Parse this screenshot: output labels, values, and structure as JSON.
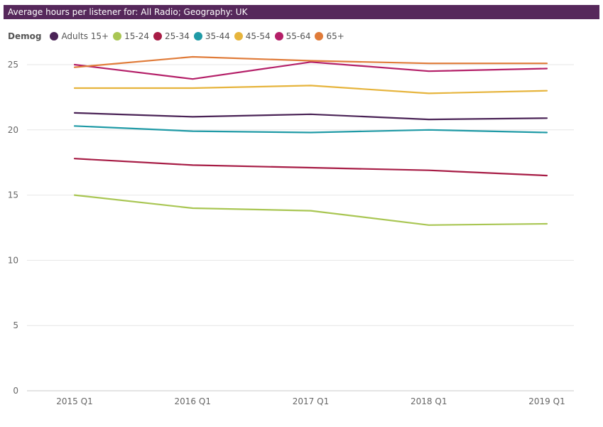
{
  "chart_data": {
    "type": "line",
    "title": "Average hours per listener for: All Radio; Geography: UK",
    "legend_title": "Demog",
    "legend_position": "top-left",
    "grid": true,
    "ylim": [
      0,
      25
    ],
    "yticks": [
      0,
      5,
      10,
      15,
      20,
      25
    ],
    "categories": [
      "2015 Q1",
      "2016 Q1",
      "2017 Q1",
      "2018 Q1",
      "2019 Q1"
    ],
    "series": [
      {
        "name": "Adults 15+",
        "color": "#4a2356",
        "values": [
          21.3,
          21.0,
          21.2,
          20.8,
          20.9
        ]
      },
      {
        "name": "15-24",
        "color": "#a9c653",
        "values": [
          15.0,
          14.0,
          13.8,
          12.7,
          12.8
        ]
      },
      {
        "name": "25-34",
        "color": "#a71c45",
        "values": [
          17.8,
          17.3,
          17.1,
          16.9,
          16.5
        ]
      },
      {
        "name": "35-44",
        "color": "#1f9aa6",
        "values": [
          20.3,
          19.9,
          19.8,
          20.0,
          19.8
        ]
      },
      {
        "name": "45-54",
        "color": "#e6b43c",
        "values": [
          23.2,
          23.2,
          23.4,
          22.8,
          23.0
        ]
      },
      {
        "name": "55-64",
        "color": "#b41f68",
        "values": [
          25.0,
          23.9,
          25.2,
          24.5,
          24.7
        ]
      },
      {
        "name": "65+",
        "color": "#e07b39",
        "values": [
          24.8,
          25.6,
          25.3,
          25.1,
          25.1
        ]
      }
    ]
  }
}
